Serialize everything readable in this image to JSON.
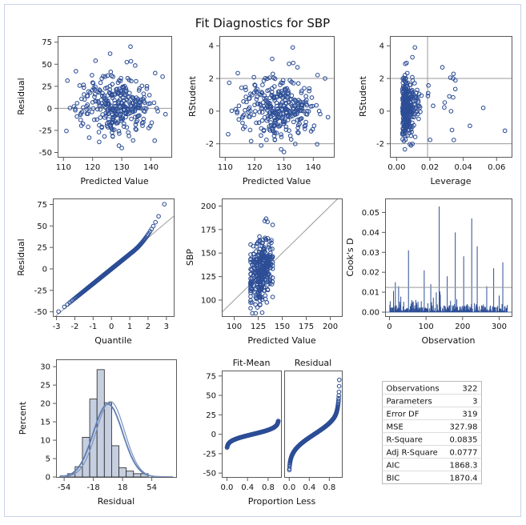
{
  "title": "Fit Diagnostics for SBP",
  "colors": {
    "marker": "#2d4e96",
    "bar": "#c6cfe0",
    "curve": "#5d7db3",
    "refline": "#9a9a9a",
    "axis": "#5a5a5a",
    "text": "#111111",
    "border": "#c8d2e8"
  },
  "chart_data": [
    {
      "type": "scatter",
      "panel": "residual-vs-predicted",
      "xlabel": "Predicted Value",
      "ylabel": "Residual",
      "xlim": [
        108,
        147
      ],
      "ylim": [
        -55,
        82
      ],
      "xticks": [
        110,
        120,
        130,
        140
      ],
      "yticks": [
        -50,
        -25,
        0,
        25,
        50,
        75
      ],
      "hlines": [
        0
      ],
      "x_center": 128,
      "x_spread": 7,
      "y_spread": 18,
      "n": 322,
      "outliers": [
        {
          "x": 133,
          "y": 70
        },
        {
          "x": 126,
          "y": 62
        },
        {
          "x": 144,
          "y": 36
        },
        {
          "x": 121,
          "y": 54
        },
        {
          "x": 130,
          "y": -45
        }
      ]
    },
    {
      "type": "scatter",
      "panel": "rstudent-vs-predicted",
      "xlabel": "Predicted Value",
      "ylabel": "RStudent",
      "xlim": [
        108,
        147
      ],
      "ylim": [
        -2.8,
        4.6
      ],
      "xticks": [
        110,
        120,
        130,
        140
      ],
      "yticks": [
        -2,
        0,
        2,
        4
      ],
      "hlines": [
        -2,
        2
      ],
      "x_center": 128,
      "x_spread": 7,
      "y_spread": 1.0,
      "n": 322,
      "outliers": [
        {
          "x": 133,
          "y": 3.9
        },
        {
          "x": 126,
          "y": 3.2
        },
        {
          "x": 144,
          "y": 2.0
        },
        {
          "x": 130,
          "y": -2.5
        }
      ]
    },
    {
      "type": "scatter",
      "panel": "rstudent-vs-leverage",
      "xlabel": "Leverage",
      "ylabel": "RStudent",
      "xlim": [
        -0.004,
        0.069
      ],
      "ylim": [
        -2.8,
        4.6
      ],
      "xticks": [
        0.0,
        0.02,
        0.04,
        0.06
      ],
      "xticklabels": [
        "0.00",
        "0.02",
        "0.04",
        "0.06"
      ],
      "yticks": [
        -2,
        0,
        2,
        4
      ],
      "hlines": [
        -2,
        2
      ],
      "vlines": [
        0.0186
      ],
      "n": 322,
      "outliers": [
        {
          "x": 0.011,
          "y": 3.9
        },
        {
          "x": 0.0095,
          "y": 3.3
        },
        {
          "x": 0.065,
          "y": -1.2
        },
        {
          "x": 0.052,
          "y": 0.2
        },
        {
          "x": 0.034,
          "y": 2.0
        },
        {
          "x": 0.044,
          "y": -0.9
        }
      ]
    },
    {
      "type": "scatter",
      "panel": "qq-plot",
      "xlabel": "Quantile",
      "ylabel": "Residual",
      "xlim": [
        -3.2,
        3.4
      ],
      "ylim": [
        -55,
        82
      ],
      "xticks": [
        -3,
        -2,
        -1,
        0,
        1,
        2,
        3
      ],
      "yticks": [
        -50,
        -25,
        0,
        25,
        50,
        75
      ],
      "refline": {
        "intercept": 0,
        "slope": 18.1
      },
      "n": 322
    },
    {
      "type": "scatter",
      "panel": "observed-vs-predicted",
      "xlabel": "Predicted Value",
      "ylabel": "SBP",
      "xlim": [
        87,
        212
      ],
      "ylim": [
        83,
        208
      ],
      "xticks": [
        100,
        125,
        150,
        175,
        200
      ],
      "yticks": [
        100,
        125,
        150,
        175,
        200
      ],
      "refline": {
        "intercept": 0,
        "slope": 1
      },
      "n": 322
    },
    {
      "type": "bar",
      "panel": "cooks-d",
      "xlabel": "Observation",
      "ylabel": "Cook's D",
      "xlim": [
        -12,
        334
      ],
      "ylim": [
        -0.002,
        0.057
      ],
      "xticks": [
        0,
        100,
        200,
        300
      ],
      "yticks": [
        0.0,
        0.01,
        0.02,
        0.03,
        0.04,
        0.05
      ],
      "yticklabels": [
        "0.00",
        "0.01",
        "0.02",
        "0.03",
        "0.04",
        "0.05"
      ],
      "hlines": [
        0.0124
      ],
      "n": 322,
      "spikes": [
        {
          "obs": 136,
          "d": 0.053
        },
        {
          "obs": 225,
          "d": 0.047
        },
        {
          "obs": 180,
          "d": 0.04
        },
        {
          "obs": 52,
          "d": 0.031
        },
        {
          "obs": 203,
          "d": 0.028
        },
        {
          "obs": 285,
          "d": 0.022
        },
        {
          "obs": 310,
          "d": 0.025
        },
        {
          "obs": 95,
          "d": 0.021
        },
        {
          "obs": 25,
          "d": 0.013
        },
        {
          "obs": 158,
          "d": 0.018
        },
        {
          "obs": 240,
          "d": 0.033
        },
        {
          "obs": 16,
          "d": 0.015
        },
        {
          "obs": 113,
          "d": 0.014
        },
        {
          "obs": 266,
          "d": 0.013
        }
      ]
    },
    {
      "type": "bar",
      "panel": "residual-histogram",
      "xlabel": "Residual",
      "ylabel": "Percent",
      "xlim": [
        -64,
        84
      ],
      "ylim": [
        0,
        32
      ],
      "xticks": [
        -54,
        -18,
        18,
        54
      ],
      "yticks": [
        0,
        5,
        10,
        15,
        20,
        25,
        30
      ],
      "bin_start": -54,
      "bin_width": 9,
      "values": [
        0.3,
        0.9,
        2.8,
        10.8,
        21.2,
        29.2,
        20.2,
        8.5,
        2.5,
        1.6,
        0.9,
        0.9
      ],
      "normal_curve": {
        "mean": 0,
        "sd": 18.1
      },
      "kernel_curve": {
        "mean": 3,
        "sd": 17.5
      }
    },
    {
      "type": "scatter",
      "panel": "spread-plot",
      "title": "Fit-Mean",
      "title2": "Residual",
      "xlabel": "Proportion Less",
      "ylabel": "",
      "xlim": [
        -0.1,
        1.05
      ],
      "ylim": [
        -55,
        82
      ],
      "xticks": [
        0.0,
        0.4,
        0.8
      ],
      "xticklabels": [
        "0.0",
        "0.4",
        "0.8"
      ],
      "yticks": [
        -50,
        -25,
        0,
        25,
        50,
        75
      ],
      "fit_mean_range": [
        -17,
        17
      ],
      "residual_range": [
        -46,
        70
      ],
      "n": 322
    }
  ],
  "stats_table": [
    {
      "label": "Observations",
      "value": "322"
    },
    {
      "label": "Parameters",
      "value": "3"
    },
    {
      "label": "Error DF",
      "value": "319"
    },
    {
      "label": "MSE",
      "value": "327.98"
    },
    {
      "label": "R-Square",
      "value": "0.0835"
    },
    {
      "label": "Adj R-Square",
      "value": "0.0777"
    },
    {
      "label": "AIC",
      "value": "1868.3"
    },
    {
      "label": "BIC",
      "value": "1870.4"
    }
  ]
}
